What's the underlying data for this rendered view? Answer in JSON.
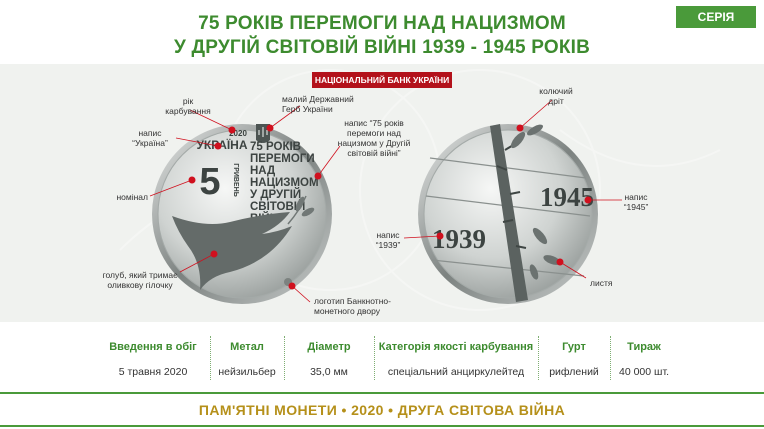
{
  "header": {
    "title_line1": "75 РОКІВ ПЕРЕМОГИ НАД НАЦИЗМОМ",
    "title_line2": "У ДРУГІЙ СВІТОВІЙ ВІЙНІ 1939 - 1945 РОКІВ",
    "series_label": "СЕРІЯ"
  },
  "bank_label": "НАЦІОНАЛЬНИЙ БАНК УКРАЇНИ",
  "obverse": {
    "coin_text": {
      "year": "2020",
      "country": "УКРАЇНА",
      "denomination": "5",
      "currency": "ГРИВЕНЬ",
      "inscription_lines": [
        "75 РОКІВ",
        "ПЕРЕМОГИ",
        "НАД",
        "НАЦИЗМОМ",
        "У ДРУГІЙ",
        "СВІТОВІЙ",
        "ВІЙНІ"
      ]
    },
    "callouts": {
      "year": "рік\nкарбування",
      "country": "напис\n“Україна”",
      "denomination": "номінал",
      "emblem": "малий Державний\nГерб України",
      "inscription": "напис “75 років\nперемоги над\nнацизмом у Другій\nсвітовій війні”",
      "dove": "голуб, який тримає\nоливкову гілочку",
      "mint_logo": "логотип Банкнотно-\nмонетного двору"
    }
  },
  "reverse": {
    "coin_text": {
      "year_left": "1939",
      "year_right": "1945"
    },
    "callouts": {
      "barbed_wire": "колючий\nдріт",
      "year_1945": "напис\n“1945”",
      "year_1939": "напис\n“1939”",
      "leaves": "листя"
    }
  },
  "stats": {
    "headers": [
      "Введення в обіг",
      "Метал",
      "Діаметр",
      "Категорія якості карбування",
      "Гурт",
      "Тираж"
    ],
    "values": [
      "5 травня 2020",
      "нейзильбер",
      "35,0 мм",
      "спеціальний анциркулейтед",
      "рифлений",
      "40 000 шт."
    ]
  },
  "footer": "ПАМ'ЯТНІ МОНЕТИ • 2020 • ДРУГА СВІТОВА ВІЙНА",
  "colors": {
    "brand_green": "#3d8b2f",
    "accent_red": "#b3121b",
    "footer_gold": "#b5901a",
    "callout_dot": "#d0101e"
  }
}
